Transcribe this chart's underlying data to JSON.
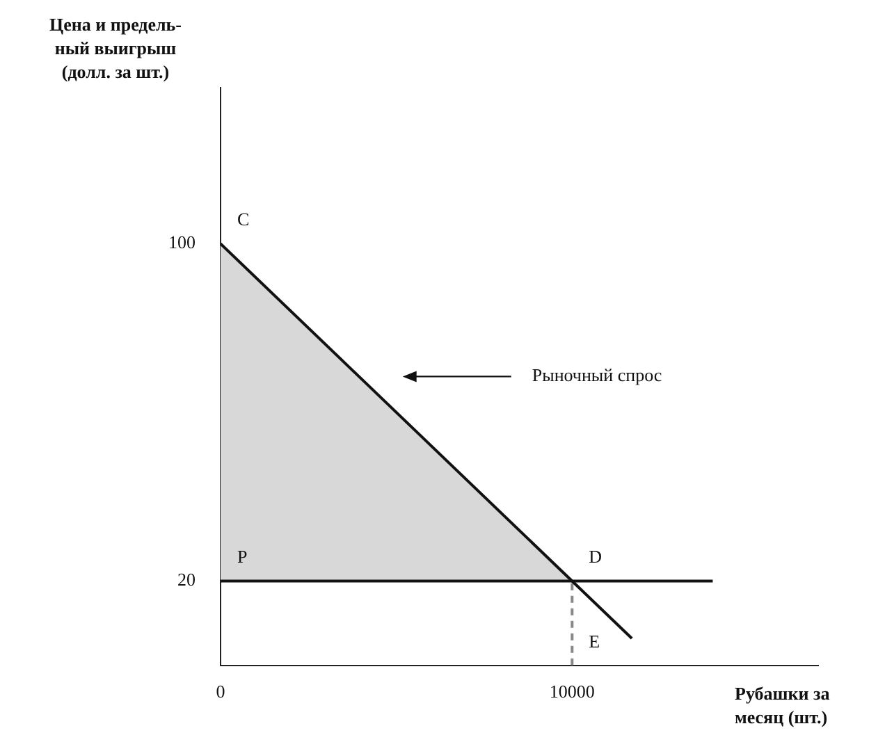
{
  "chart_data": {
    "type": "line",
    "ylabel": "Цена и предель-\nный выигрыш\n(долл. за шт.)",
    "xlabel": "Рубашки за\nмесяц (шт.)",
    "xlim": [
      0,
      17000
    ],
    "ylim": [
      0,
      137
    ],
    "xticks": [
      0,
      10000
    ],
    "yticks": [
      20,
      100
    ],
    "grid": false,
    "legend": false,
    "marker": "none",
    "series": [
      {
        "type": "area",
        "color": "#d8d8d8",
        "x": [
          0,
          10000
        ],
        "values": [
          100,
          20
        ]
      },
      {
        "type": "line",
        "color": "#111111",
        "x": [
          0,
          11700
        ],
        "values": [
          100,
          6.4
        ]
      },
      {
        "type": "line",
        "color": "#111111",
        "x": [
          0,
          14000
        ],
        "values": [
          20,
          20
        ]
      },
      {
        "type": "line",
        "color": "#888888",
        "line_style": "dashed",
        "x": [
          10000,
          10000
        ],
        "values": [
          0,
          20
        ]
      }
    ],
    "annotations": [
      "C",
      "P",
      "E",
      "Рыночный спрос",
      {
        "text": "D",
        "x": 10000,
        "y": 20
      }
    ]
  }
}
